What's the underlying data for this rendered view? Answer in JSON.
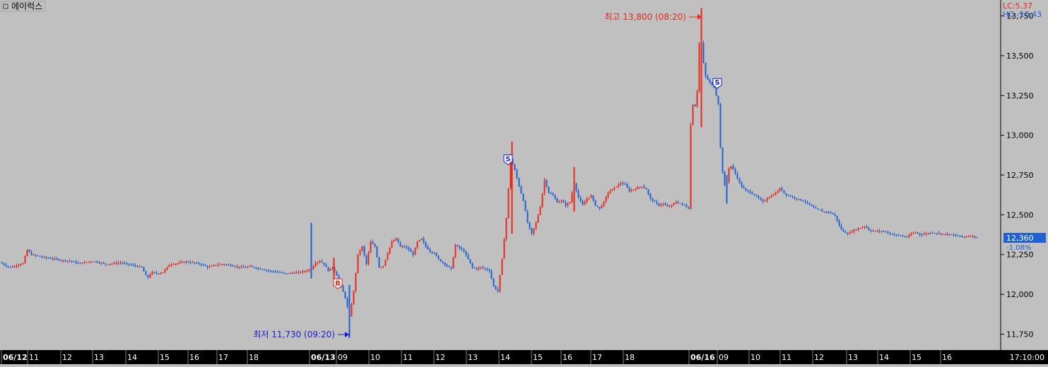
{
  "window": {
    "title": "에이럭스",
    "menu_icon": "square-icon"
  },
  "price_box": {
    "lc_label": "LC:5.37",
    "hc_label": "HC:-10.43",
    "current_price": "12,360",
    "change_pct": "-1.08%"
  },
  "annotations": {
    "high": "최고 13,800 (08:20)",
    "low": "최저 11,730 (09:20)",
    "buy_marker": "B",
    "sell_marker": "S"
  },
  "time_axis": {
    "right_label": "17:10:00",
    "labels": [
      {
        "text": "06/12",
        "bold": true
      },
      {
        "text": "11"
      },
      {
        "text": "12"
      },
      {
        "text": "13"
      },
      {
        "text": "14"
      },
      {
        "text": "15"
      },
      {
        "text": "16"
      },
      {
        "text": "17"
      },
      {
        "text": "18"
      },
      {
        "text": "06/13",
        "bold": true
      },
      {
        "text": "09"
      },
      {
        "text": "10"
      },
      {
        "text": "11"
      },
      {
        "text": "12"
      },
      {
        "text": "13"
      },
      {
        "text": "14"
      },
      {
        "text": "15"
      },
      {
        "text": "16"
      },
      {
        "text": "17"
      },
      {
        "text": "18"
      },
      {
        "text": "06/16",
        "bold": true
      },
      {
        "text": "09"
      },
      {
        "text": "10"
      },
      {
        "text": "11"
      },
      {
        "text": "12"
      },
      {
        "text": "13"
      },
      {
        "text": "14"
      },
      {
        "text": "15"
      },
      {
        "text": "16"
      }
    ]
  },
  "colors": {
    "up": "#e8271d",
    "down": "#2060d0",
    "background": "#c0c0c0",
    "axis_bar": "#000000",
    "current_price_bg": "#2060d0"
  },
  "chart_data": {
    "type": "candlestick",
    "ylim": [
      11650,
      13850
    ],
    "y_ticks": [
      11750,
      12000,
      12250,
      12500,
      12750,
      13000,
      13250,
      13500,
      13750
    ],
    "y_tick_labels": [
      "11,750",
      "12,000",
      "12,250",
      "12,500",
      "12,750",
      "13,000",
      "13,250",
      "13,500",
      "13,750"
    ],
    "high": 13800,
    "low": 11730,
    "last": 12360,
    "close_path": [
      [
        0,
        12200
      ],
      [
        8,
        12180
      ],
      [
        16,
        12170
      ],
      [
        24,
        12185
      ],
      [
        32,
        12195
      ],
      [
        38,
        12280
      ],
      [
        44,
        12250
      ],
      [
        54,
        12240
      ],
      [
        64,
        12230
      ],
      [
        74,
        12225
      ],
      [
        86,
        12215
      ],
      [
        100,
        12210
      ],
      [
        110,
        12195
      ],
      [
        120,
        12200
      ],
      [
        130,
        12210
      ],
      [
        140,
        12200
      ],
      [
        150,
        12190
      ],
      [
        160,
        12195
      ],
      [
        170,
        12200
      ],
      [
        180,
        12190
      ],
      [
        190,
        12180
      ],
      [
        200,
        12170
      ],
      [
        208,
        12100
      ],
      [
        214,
        12140
      ],
      [
        222,
        12130
      ],
      [
        230,
        12140
      ],
      [
        240,
        12190
      ],
      [
        250,
        12195
      ],
      [
        262,
        12205
      ],
      [
        272,
        12200
      ],
      [
        284,
        12190
      ],
      [
        294,
        12170
      ],
      [
        304,
        12185
      ],
      [
        314,
        12190
      ],
      [
        324,
        12185
      ],
      [
        334,
        12175
      ],
      [
        344,
        12170
      ],
      [
        354,
        12175
      ],
      [
        364,
        12165
      ],
      [
        374,
        12155
      ],
      [
        384,
        12145
      ],
      [
        394,
        12140
      ],
      [
        404,
        12130
      ],
      [
        414,
        12135
      ],
      [
        424,
        12140
      ],
      [
        434,
        12150
      ],
      [
        440,
        12160
      ],
      [
        446,
        12200
      ],
      [
        452,
        12210
      ],
      [
        458,
        12190
      ],
      [
        464,
        12150
      ],
      [
        470,
        12170
      ],
      [
        476,
        12120
      ],
      [
        482,
        12050
      ],
      [
        488,
        11980
      ],
      [
        494,
        11860
      ],
      [
        500,
        12020
      ],
      [
        506,
        12250
      ],
      [
        512,
        12300
      ],
      [
        518,
        12190
      ],
      [
        524,
        12330
      ],
      [
        530,
        12300
      ],
      [
        536,
        12170
      ],
      [
        542,
        12180
      ],
      [
        548,
        12260
      ],
      [
        554,
        12330
      ],
      [
        560,
        12350
      ],
      [
        566,
        12300
      ],
      [
        572,
        12300
      ],
      [
        578,
        12280
      ],
      [
        584,
        12250
      ],
      [
        590,
        12330
      ],
      [
        596,
        12350
      ],
      [
        602,
        12300
      ],
      [
        608,
        12270
      ],
      [
        614,
        12260
      ],
      [
        620,
        12220
      ],
      [
        626,
        12200
      ],
      [
        632,
        12180
      ],
      [
        638,
        12160
      ],
      [
        644,
        12310
      ],
      [
        650,
        12290
      ],
      [
        656,
        12270
      ],
      [
        662,
        12220
      ],
      [
        668,
        12170
      ],
      [
        674,
        12160
      ],
      [
        680,
        12170
      ],
      [
        686,
        12160
      ],
      [
        692,
        12150
      ],
      [
        698,
        12050
      ],
      [
        704,
        12020
      ],
      [
        710,
        12220
      ],
      [
        716,
        12480
      ],
      [
        722,
        12850
      ],
      [
        728,
        12780
      ],
      [
        734,
        12680
      ],
      [
        740,
        12590
      ],
      [
        746,
        12450
      ],
      [
        752,
        12380
      ],
      [
        758,
        12450
      ],
      [
        764,
        12550
      ],
      [
        770,
        12720
      ],
      [
        776,
        12640
      ],
      [
        782,
        12620
      ],
      [
        788,
        12580
      ],
      [
        794,
        12590
      ],
      [
        800,
        12560
      ],
      [
        806,
        12580
      ],
      [
        812,
        12700
      ],
      [
        818,
        12610
      ],
      [
        824,
        12560
      ],
      [
        830,
        12600
      ],
      [
        836,
        12620
      ],
      [
        842,
        12560
      ],
      [
        848,
        12540
      ],
      [
        854,
        12580
      ],
      [
        860,
        12640
      ],
      [
        866,
        12660
      ],
      [
        872,
        12680
      ],
      [
        878,
        12700
      ],
      [
        884,
        12690
      ],
      [
        890,
        12650
      ],
      [
        896,
        12660
      ],
      [
        902,
        12670
      ],
      [
        908,
        12680
      ],
      [
        914,
        12660
      ],
      [
        920,
        12600
      ],
      [
        926,
        12580
      ],
      [
        932,
        12560
      ],
      [
        938,
        12570
      ],
      [
        944,
        12550
      ],
      [
        950,
        12560
      ],
      [
        956,
        12580
      ],
      [
        962,
        12570
      ],
      [
        968,
        12560
      ],
      [
        974,
        12540
      ],
      [
        978,
        13240
      ],
      [
        982,
        13150
      ],
      [
        986,
        13280
      ],
      [
        990,
        13680
      ],
      [
        994,
        13480
      ],
      [
        998,
        13370
      ],
      [
        1004,
        13330
      ],
      [
        1010,
        13300
      ],
      [
        1016,
        13200
      ],
      [
        1020,
        12830
      ],
      [
        1026,
        12650
      ],
      [
        1032,
        12820
      ],
      [
        1038,
        12780
      ],
      [
        1044,
        12720
      ],
      [
        1050,
        12670
      ],
      [
        1056,
        12650
      ],
      [
        1062,
        12640
      ],
      [
        1068,
        12620
      ],
      [
        1074,
        12600
      ],
      [
        1080,
        12580
      ],
      [
        1086,
        12610
      ],
      [
        1092,
        12620
      ],
      [
        1098,
        12640
      ],
      [
        1104,
        12670
      ],
      [
        1110,
        12630
      ],
      [
        1116,
        12620
      ],
      [
        1122,
        12610
      ],
      [
        1128,
        12600
      ],
      [
        1134,
        12590
      ],
      [
        1140,
        12580
      ],
      [
        1146,
        12560
      ],
      [
        1152,
        12540
      ],
      [
        1158,
        12530
      ],
      [
        1164,
        12520
      ],
      [
        1170,
        12520
      ],
      [
        1176,
        12510
      ],
      [
        1182,
        12490
      ],
      [
        1188,
        12420
      ],
      [
        1194,
        12390
      ],
      [
        1200,
        12380
      ],
      [
        1206,
        12400
      ],
      [
        1212,
        12410
      ],
      [
        1218,
        12420
      ],
      [
        1224,
        12430
      ],
      [
        1230,
        12400
      ],
      [
        1236,
        12400
      ],
      [
        1242,
        12395
      ],
      [
        1248,
        12400
      ],
      [
        1254,
        12390
      ],
      [
        1260,
        12380
      ],
      [
        1266,
        12375
      ],
      [
        1272,
        12370
      ],
      [
        1278,
        12365
      ],
      [
        1284,
        12360
      ],
      [
        1290,
        12385
      ],
      [
        1296,
        12390
      ],
      [
        1302,
        12375
      ],
      [
        1308,
        12380
      ],
      [
        1314,
        12385
      ],
      [
        1320,
        12390
      ],
      [
        1326,
        12385
      ],
      [
        1332,
        12380
      ],
      [
        1338,
        12380
      ],
      [
        1344,
        12375
      ],
      [
        1350,
        12370
      ],
      [
        1356,
        12370
      ],
      [
        1362,
        12360
      ],
      [
        1368,
        12365
      ],
      [
        1374,
        12370
      ],
      [
        1380,
        12360
      ],
      [
        1384,
        12355
      ]
    ],
    "spikes": [
      [
        440,
        12450,
        12100
      ],
      [
        472,
        12230,
        12050
      ],
      [
        494,
        12060,
        11730
      ],
      [
        724,
        12960,
        12380
      ],
      [
        812,
        12800,
        12520
      ],
      [
        992,
        13800,
        13050
      ],
      [
        1028,
        12750,
        12570
      ]
    ],
    "markers": [
      {
        "label": "B",
        "x": 478,
        "price": 12070,
        "kind": "buy"
      },
      {
        "label": "S",
        "x": 719,
        "price": 12850,
        "kind": "sell"
      },
      {
        "label": "S",
        "x": 1015,
        "price": 13330,
        "kind": "sell"
      }
    ]
  }
}
